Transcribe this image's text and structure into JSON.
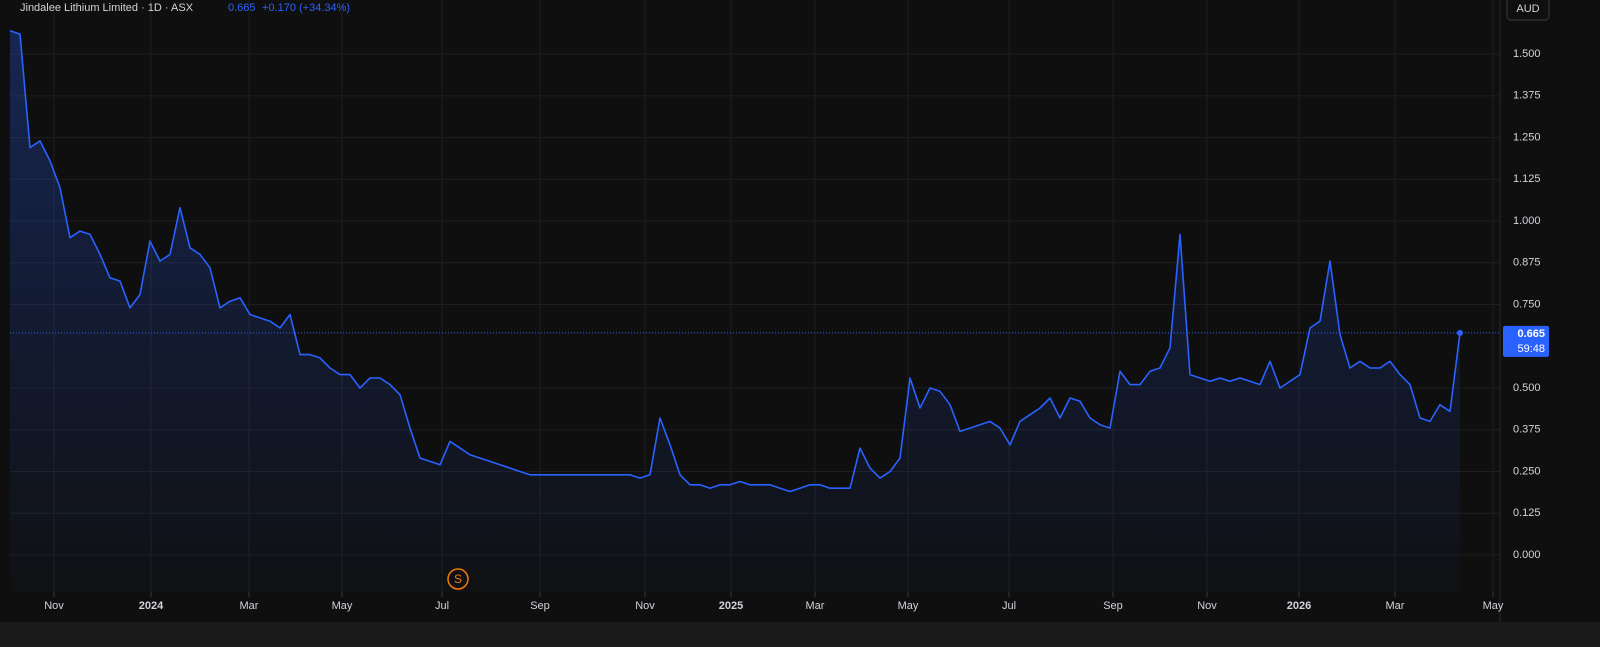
{
  "chart_data": {
    "type": "area",
    "title": "Jindalee Lithium Limited · 1D · ASX",
    "change_label": "+0.170 (+34.34%)",
    "countdown": "59:48",
    "currency": "AUD",
    "event_marker": "S",
    "color": "#2962ff",
    "grid": true,
    "values": [
      1.57,
      1.56,
      1.22,
      1.24,
      1.18,
      1.1,
      0.95,
      0.97,
      0.96,
      0.9,
      0.83,
      0.82,
      0.74,
      0.78,
      0.94,
      0.88,
      0.9,
      1.04,
      0.92,
      0.9,
      0.86,
      0.74,
      0.76,
      0.77,
      0.72,
      0.71,
      0.7,
      0.68,
      0.72,
      0.6,
      0.6,
      0.59,
      0.56,
      0.54,
      0.54,
      0.5,
      0.53,
      0.53,
      0.51,
      0.48,
      0.38,
      0.29,
      0.28,
      0.27,
      0.34,
      0.32,
      0.3,
      0.29,
      0.28,
      0.27,
      0.26,
      0.25,
      0.24,
      0.24,
      0.24,
      0.24,
      0.24,
      0.24,
      0.24,
      0.24,
      0.24,
      0.24,
      0.24,
      0.23,
      0.24,
      0.41,
      0.33,
      0.24,
      0.21,
      0.21,
      0.2,
      0.21,
      0.21,
      0.22,
      0.21,
      0.21,
      0.21,
      0.2,
      0.19,
      0.2,
      0.21,
      0.21,
      0.2,
      0.2,
      0.2,
      0.32,
      0.26,
      0.23,
      0.25,
      0.29,
      0.53,
      0.44,
      0.5,
      0.49,
      0.45,
      0.37,
      0.38,
      0.39,
      0.4,
      0.38,
      0.33,
      0.4,
      0.42,
      0.44,
      0.47,
      0.41,
      0.47,
      0.46,
      0.41,
      0.39,
      0.38,
      0.55,
      0.51,
      0.51,
      0.55,
      0.56,
      0.62,
      0.96,
      0.54,
      0.53,
      0.52,
      0.53,
      0.52,
      0.53,
      0.52,
      0.51,
      0.58,
      0.5,
      0.52,
      0.54,
      0.68,
      0.7,
      0.88,
      0.66,
      0.56,
      0.58,
      0.56,
      0.56,
      0.58,
      0.54,
      0.51,
      0.41,
      0.4,
      0.45,
      0.43,
      0.665
    ],
    "xlim": [
      0,
      149
    ],
    "xticks": [
      {
        "value": 4.4,
        "label": "Nov"
      },
      {
        "value": 14.1,
        "label": "2024"
      },
      {
        "value": 23.9,
        "label": "Mar"
      },
      {
        "value": 33.2,
        "label": "May"
      },
      {
        "value": 43.2,
        "label": "Jul"
      },
      {
        "value": 53,
        "label": "Sep"
      },
      {
        "value": 63.5,
        "label": "Nov"
      },
      {
        "value": 72.1,
        "label": "2025"
      },
      {
        "value": 80.5,
        "label": "Mar"
      },
      {
        "value": 89.8,
        "label": "May"
      },
      {
        "value": 99.9,
        "label": "Jul"
      },
      {
        "value": 110.3,
        "label": "Sep"
      },
      {
        "value": 119.7,
        "label": "Nov"
      },
      {
        "value": 128.9,
        "label": "2026"
      },
      {
        "value": 138.5,
        "label": "Mar"
      },
      {
        "value": 148.3,
        "label": "May"
      }
    ],
    "ylim": [
      -0.111,
      1.662
    ],
    "yticks": [
      {
        "value": 0,
        "label": "0.000"
      },
      0.125,
      {
        "value": 0.25,
        "label": "0.250"
      },
      0.375,
      {
        "value": 0.5,
        "label": "0.500"
      },
      {
        "value": 0.75,
        "label": "0.750"
      },
      0.875,
      {
        "value": 1,
        "label": "1.000"
      },
      1.125,
      {
        "value": 1.25,
        "label": "1.250"
      },
      1.375,
      {
        "value": 1.5,
        "label": "1.500"
      }
    ]
  }
}
